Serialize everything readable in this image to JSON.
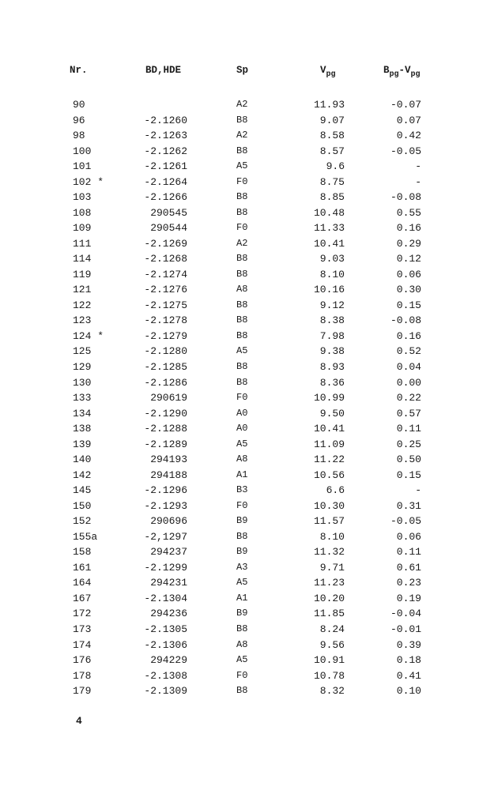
{
  "headers": {
    "nr": "Nr.",
    "bd": "BD,HDE",
    "sp": "Sp",
    "v_main": "V",
    "v_sub": "pg",
    "bv_b": "B",
    "bv_bsub": "pg",
    "bv_v": "-V",
    "bv_vsub": "pg"
  },
  "rows": [
    [
      "90",
      "",
      "A2",
      "11.93",
      "-0.07"
    ],
    [
      "96",
      "-2.1260",
      "B8",
      "9.07",
      "0.07"
    ],
    [
      "98",
      "-2.1263",
      "A2",
      "8.58",
      "0.42"
    ],
    [
      "100",
      "-2.1262",
      "B8",
      "8.57",
      "-0.05"
    ],
    [
      "101",
      "-2.1261",
      "A5",
      "9.6",
      "-"
    ],
    [
      "102 *",
      "-2.1264",
      "F0",
      "8.75",
      "-"
    ],
    [
      "103",
      "-2.1266",
      "B8",
      "8.85",
      "-0.08"
    ],
    [
      "108",
      "290545",
      "B8",
      "10.48",
      "0.55"
    ],
    [
      "109",
      "290544",
      "F0",
      "11.33",
      "0.16"
    ],
    [
      "111",
      "-2.1269",
      "A2",
      "10.41",
      "0.29"
    ],
    [
      "114",
      "-2.1268",
      "B8",
      "9.03",
      "0.12"
    ],
    [
      "119",
      "-2.1274",
      "B8",
      "8.10",
      "0.06"
    ],
    [
      "121",
      "-2.1276",
      "A8",
      "10.16",
      "0.30"
    ],
    [
      "122",
      "-2.1275",
      "B8",
      "9.12",
      "0.15"
    ],
    [
      "123",
      "-2.1278",
      "B8",
      "8.38",
      "-0.08"
    ],
    [
      "124 *",
      "-2.1279",
      "B8",
      "7.98",
      "0.16"
    ],
    [
      "125",
      "-2.1280",
      "A5",
      "9.38",
      "0.52"
    ],
    [
      "129",
      "-2.1285",
      "B8",
      "8.93",
      "0.04"
    ],
    [
      "130",
      "-2.1286",
      "B8",
      "8.36",
      "0.00"
    ],
    [
      "133",
      "290619",
      "F0",
      "10.99",
      "0.22"
    ],
    [
      "134",
      "-2.1290",
      "A0",
      "9.50",
      "0.57"
    ],
    [
      "138",
      "-2.1288",
      "A0",
      "10.41",
      "0.11"
    ],
    [
      "139",
      "-2.1289",
      "A5",
      "11.09",
      "0.25"
    ],
    [
      "140",
      "294193",
      "A8",
      "11.22",
      "0.50"
    ],
    [
      "142",
      "294188",
      "A1",
      "10.56",
      "0.15"
    ],
    [
      "145",
      "-2.1296",
      "B3",
      "6.6",
      "-"
    ],
    [
      "150",
      "-2.1293",
      "F0",
      "10.30",
      "0.31"
    ],
    [
      "152",
      "290696",
      "B9",
      "11.57",
      "-0.05"
    ],
    [
      "155a",
      "-2,1297",
      "B8",
      "8.10",
      "0.06"
    ],
    [
      "158",
      "294237",
      "B9",
      "11.32",
      "0.11"
    ],
    [
      "161",
      "-2.1299",
      "A3",
      "9.71",
      "0.61"
    ],
    [
      "164",
      "294231",
      "A5",
      "11.23",
      "0.23"
    ],
    [
      "167",
      "-2.1304",
      "A1",
      "10.20",
      "0.19"
    ],
    [
      "172",
      "294236",
      "B9",
      "11.85",
      "-0.04"
    ],
    [
      "173",
      "-2.1305",
      "B8",
      "8.24",
      "-0.01"
    ],
    [
      "174",
      "-2.1306",
      "A8",
      "9.56",
      "0.39"
    ],
    [
      "176",
      "294229",
      "A5",
      "10.91",
      "0.18"
    ],
    [
      "178",
      "-2.1308",
      "F0",
      "10.78",
      "0.41"
    ],
    [
      "179",
      "-2.1309",
      "B8",
      "8.32",
      "0.10"
    ]
  ],
  "page_number": "4"
}
